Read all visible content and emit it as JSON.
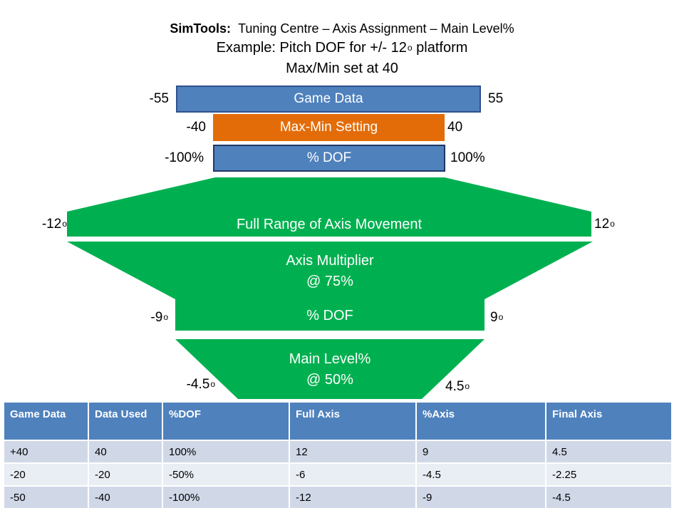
{
  "header": {
    "title_bold": "SimTools:",
    "title_rest": "Tuning Centre – Axis Assignment – Main Level%",
    "subtitle_main": "Example: Pitch DOF for +/- 12",
    "degree_symbol": "o",
    "subtitle_suffix": " platform",
    "subtitle2": "Max/Min set at 40"
  },
  "bars": {
    "game_data": {
      "label": "Game Data",
      "min": "-55",
      "max": "55"
    },
    "max_min": {
      "label": "Max-Min Setting",
      "min": "-40",
      "max": "40"
    },
    "pct_dof": {
      "label": "% DOF",
      "min": "-100%",
      "max": "100%"
    }
  },
  "stages": {
    "full_range": {
      "label": "Full Range of Axis Movement",
      "min": "-12",
      "max": "12"
    },
    "multiplier": {
      "label_line1": "Axis Multiplier",
      "label_line2": "@ 75%"
    },
    "dof": {
      "label": "% DOF",
      "min": "-9",
      "max": "9"
    },
    "main_level": {
      "label_line1": "Main Level%",
      "label_line2": "@ 50%",
      "min": "-4.5",
      "max": "4.5"
    }
  },
  "table": {
    "headers": [
      "Game Data",
      "Data Used",
      "%DOF",
      "Full Axis",
      "%Axis",
      "Final Axis"
    ],
    "rows": [
      [
        "+40",
        "40",
        "100%",
        "12",
        "9",
        "4.5"
      ],
      [
        "-20",
        "-20",
        "-50%",
        "-6",
        "-4.5",
        "-2.25"
      ],
      [
        "-50",
        "-40",
        "-100%",
        "-12",
        "-9",
        "-4.5"
      ]
    ]
  },
  "colors": {
    "blue": "#4f81bd",
    "orange": "#e36c09",
    "green": "#00b050",
    "table_header": "#4f81bd",
    "table_row_odd": "#d0d8e8",
    "table_row_even": "#e9edf4"
  }
}
